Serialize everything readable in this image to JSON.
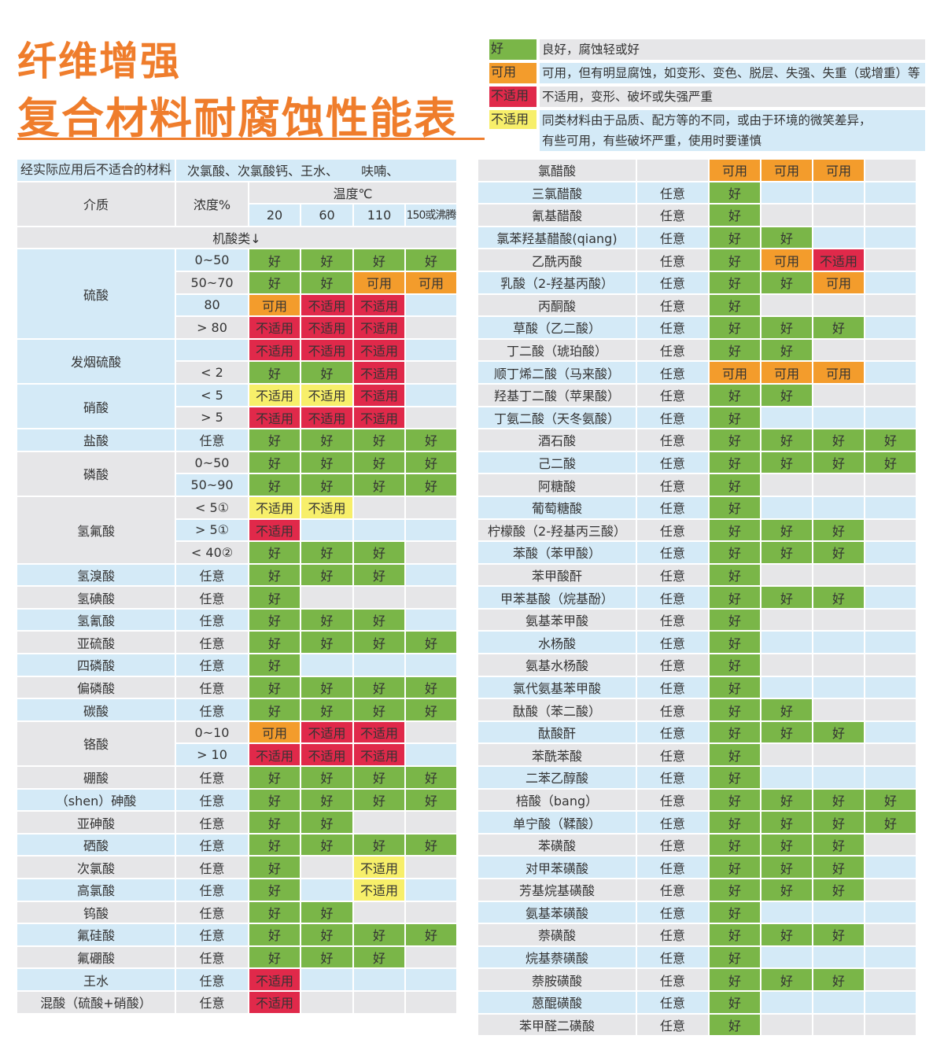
{
  "title": {
    "line1": "纤维增强",
    "line2": "复合材料耐腐蚀性能表"
  },
  "colors": {
    "title": "#ef7d2c",
    "G": "#7ab648",
    "U": "#f39c2c",
    "N": "#e0294a",
    "Y": "#f7ef6a",
    "row_blue": "#d4eaf7",
    "row_gray": "#e6e6e8"
  },
  "legend": {
    "G": {
      "swatch": "好",
      "desc": [
        "良好，腐蚀轻或好"
      ]
    },
    "U": {
      "swatch": "可用",
      "desc": [
        "可用，但有明显腐蚀，如变形、变色、脱层、失强、失重（或增重）等"
      ]
    },
    "N": {
      "swatch": "不适用",
      "desc": [
        "不适用，变形、破坏或失强严重"
      ]
    },
    "Y": {
      "swatch": "不适用",
      "desc": [
        "同类材料由于品质、配方等的不同，或由于环境的微笑差异，",
        "有些可用，有些破坏严重，使用时要谨慎"
      ]
    }
  },
  "left_table": {
    "unsuitable_label": "经实际应用后不适合的材料",
    "unsuitable_value": "次氯酸、次氯酸钙、王水、　　 呋喃、",
    "medium_header": "介质",
    "conc_header": "浓度%",
    "temp_header": "温度℃",
    "temps": [
      "20",
      "60",
      "110",
      "150或沸腾"
    ],
    "section": "机酸类↓",
    "groups": [
      {
        "medium": "硫酸",
        "shade": "blue",
        "rows": [
          {
            "conc": "0~50",
            "cells": [
              "G",
              "G",
              "G",
              "G"
            ]
          },
          {
            "conc": "50~70",
            "cells": [
              "G",
              "G",
              "U",
              "U"
            ]
          },
          {
            "conc": "80",
            "cells": [
              "U",
              "N",
              "N",
              ""
            ]
          },
          {
            "conc": "> 80",
            "cells": [
              "N",
              "N",
              "N",
              ""
            ]
          }
        ]
      },
      {
        "medium": "发烟硫酸",
        "shade": "blue",
        "rows": [
          {
            "conc": "",
            "cells": [
              "N",
              "N",
              "N",
              ""
            ]
          },
          {
            "conc": "< 2",
            "cells": [
              "G",
              "G",
              "N",
              ""
            ]
          }
        ]
      },
      {
        "medium": "硝酸",
        "shade": "blue",
        "rows": [
          {
            "conc": "< 5",
            "cells": [
              "Y",
              "Y",
              "N",
              ""
            ]
          },
          {
            "conc": "> 5",
            "cells": [
              "N",
              "N",
              "N",
              ""
            ]
          }
        ]
      },
      {
        "medium": "盐酸",
        "rows": [
          {
            "conc": "任意",
            "cells": [
              "G",
              "G",
              "G",
              "G"
            ]
          }
        ]
      },
      {
        "medium": "磷酸",
        "shade": "gray",
        "rows": [
          {
            "conc": "0~50",
            "cells": [
              "G",
              "G",
              "G",
              "G"
            ]
          },
          {
            "conc": "50~90",
            "cells": [
              "G",
              "G",
              "G",
              "G"
            ]
          }
        ]
      },
      {
        "medium": "氢氟酸",
        "shade": "gray",
        "rows": [
          {
            "conc": "< 5①",
            "cells": [
              "Y",
              "Y",
              "",
              ""
            ]
          },
          {
            "conc": "> 5①",
            "cells": [
              "N",
              "",
              "",
              ""
            ]
          },
          {
            "conc": "< 40②",
            "cells": [
              "G",
              "G",
              "G",
              ""
            ]
          }
        ]
      },
      {
        "medium": "氢溴酸",
        "rows": [
          {
            "conc": "任意",
            "cells": [
              "G",
              "G",
              "G",
              ""
            ]
          }
        ]
      },
      {
        "medium": "氢碘酸",
        "rows": [
          {
            "conc": "任意",
            "cells": [
              "G",
              "",
              "",
              ""
            ]
          }
        ]
      },
      {
        "medium": "氢氰酸",
        "rows": [
          {
            "conc": "任意",
            "cells": [
              "G",
              "G",
              "G",
              ""
            ]
          }
        ]
      },
      {
        "medium": "亚硫酸",
        "rows": [
          {
            "conc": "任意",
            "cells": [
              "G",
              "G",
              "G",
              "G"
            ]
          }
        ]
      },
      {
        "medium": "四磷酸",
        "rows": [
          {
            "conc": "任意",
            "cells": [
              "G",
              "",
              "",
              ""
            ]
          }
        ]
      },
      {
        "medium": "偏磷酸",
        "rows": [
          {
            "conc": "任意",
            "cells": [
              "G",
              "G",
              "G",
              "G"
            ]
          }
        ]
      },
      {
        "medium": "碳酸",
        "rows": [
          {
            "conc": "任意",
            "cells": [
              "G",
              "G",
              "G",
              "G"
            ]
          }
        ]
      },
      {
        "medium": "铬酸",
        "shade": "gray",
        "rows": [
          {
            "conc": "0~10",
            "cells": [
              "U",
              "N",
              "N",
              ""
            ]
          },
          {
            "conc": "> 10",
            "cells": [
              "N",
              "N",
              "N",
              ""
            ]
          }
        ]
      },
      {
        "medium": "硼酸",
        "rows": [
          {
            "conc": "任意",
            "cells": [
              "G",
              "G",
              "G",
              "G"
            ]
          }
        ]
      },
      {
        "medium": "（shen）砷酸",
        "rows": [
          {
            "conc": "任意",
            "cells": [
              "G",
              "G",
              "G",
              "G"
            ]
          }
        ]
      },
      {
        "medium": "亚砷酸",
        "rows": [
          {
            "conc": "任意",
            "cells": [
              "G",
              "G",
              "",
              ""
            ]
          }
        ]
      },
      {
        "medium": "硒酸",
        "rows": [
          {
            "conc": "任意",
            "cells": [
              "G",
              "G",
              "G",
              "G"
            ]
          }
        ]
      },
      {
        "medium": "次氯酸",
        "rows": [
          {
            "conc": "任意",
            "cells": [
              "G",
              "",
              "Y",
              ""
            ]
          }
        ]
      },
      {
        "medium": "高氯酸",
        "rows": [
          {
            "conc": "任意",
            "cells": [
              "G",
              "",
              "Y",
              ""
            ]
          }
        ]
      },
      {
        "medium": "钨酸",
        "rows": [
          {
            "conc": "任意",
            "cells": [
              "G",
              "G",
              "",
              ""
            ]
          }
        ]
      },
      {
        "medium": "氟硅酸",
        "rows": [
          {
            "conc": "任意",
            "cells": [
              "G",
              "G",
              "G",
              "G"
            ]
          }
        ]
      },
      {
        "medium": "氟硼酸",
        "rows": [
          {
            "conc": "任意",
            "cells": [
              "G",
              "G",
              "G",
              ""
            ]
          }
        ]
      },
      {
        "medium": "王水",
        "rows": [
          {
            "conc": "任意",
            "cells": [
              "N",
              "",
              "",
              ""
            ]
          }
        ]
      },
      {
        "medium": "混酸（硫酸+硝酸）",
        "rows": [
          {
            "conc": "任意",
            "cells": [
              "N",
              "",
              "",
              ""
            ]
          }
        ]
      }
    ]
  },
  "right_table": {
    "rows": [
      {
        "medium": "氯醋酸",
        "conc": "",
        "cells": [
          "U",
          "U",
          "U",
          ""
        ]
      },
      {
        "medium": "三氯醋酸",
        "conc": "任意",
        "cells": [
          "G",
          "",
          "",
          ""
        ]
      },
      {
        "medium": "氰基醋酸",
        "conc": "任意",
        "cells": [
          "G",
          "",
          "",
          ""
        ]
      },
      {
        "medium": "氯苯羟基醋酸(qiang)",
        "conc": "任意",
        "cells": [
          "G",
          "G",
          "",
          ""
        ]
      },
      {
        "medium": "乙酰丙酸",
        "conc": "任意",
        "cells": [
          "G",
          "U",
          "N",
          ""
        ]
      },
      {
        "medium": "乳酸（2-羟基丙酸）",
        "conc": "任意",
        "cells": [
          "G",
          "G",
          "U",
          ""
        ]
      },
      {
        "medium": "丙酮酸",
        "conc": "任意",
        "cells": [
          "G",
          "",
          "",
          ""
        ]
      },
      {
        "medium": "草酸（乙二酸）",
        "conc": "任意",
        "cells": [
          "G",
          "G",
          "G",
          ""
        ]
      },
      {
        "medium": "丁二酸（琥珀酸）",
        "conc": "任意",
        "cells": [
          "G",
          "G",
          "",
          ""
        ]
      },
      {
        "medium": "顺丁烯二酸（马来酸）",
        "conc": "任意",
        "cells": [
          "U",
          "U",
          "U",
          ""
        ]
      },
      {
        "medium": "羟基丁二酸（苹果酸）",
        "conc": "任意",
        "cells": [
          "G",
          "G",
          "",
          ""
        ]
      },
      {
        "medium": "丁氨二酸（天冬氨酸）",
        "conc": "任意",
        "cells": [
          "G",
          "",
          "",
          ""
        ]
      },
      {
        "medium": "酒石酸",
        "conc": "任意",
        "cells": [
          "G",
          "G",
          "G",
          "G"
        ]
      },
      {
        "medium": "己二酸",
        "conc": "任意",
        "cells": [
          "G",
          "G",
          "G",
          "G"
        ]
      },
      {
        "medium": "阿糖酸",
        "conc": "任意",
        "cells": [
          "G",
          "",
          "",
          ""
        ]
      },
      {
        "medium": "葡萄糖酸",
        "conc": "任意",
        "cells": [
          "G",
          "",
          "",
          ""
        ]
      },
      {
        "medium": "柠檬酸（2-羟基丙三酸）",
        "conc": "任意",
        "cells": [
          "G",
          "G",
          "G",
          ""
        ]
      },
      {
        "medium": "苯酸（苯甲酸）",
        "conc": "任意",
        "cells": [
          "G",
          "G",
          "G",
          ""
        ]
      },
      {
        "medium": "苯甲酸酐",
        "conc": "任意",
        "cells": [
          "G",
          "",
          "",
          ""
        ]
      },
      {
        "medium": "甲苯基酸（烷基酚）",
        "conc": "任意",
        "cells": [
          "G",
          "G",
          "G",
          ""
        ]
      },
      {
        "medium": "氨基苯甲酸",
        "conc": "任意",
        "cells": [
          "G",
          "",
          "",
          ""
        ]
      },
      {
        "medium": "水杨酸",
        "conc": "任意",
        "cells": [
          "G",
          "",
          "",
          ""
        ]
      },
      {
        "medium": "氨基水杨酸",
        "conc": "任意",
        "cells": [
          "G",
          "",
          "",
          ""
        ]
      },
      {
        "medium": "氯代氨基苯甲酸",
        "conc": "任意",
        "cells": [
          "G",
          "",
          "",
          ""
        ]
      },
      {
        "medium": "酞酸（苯二酸）",
        "conc": "任意",
        "cells": [
          "G",
          "G",
          "",
          ""
        ]
      },
      {
        "medium": "酞酸酐",
        "conc": "任意",
        "cells": [
          "G",
          "G",
          "G",
          ""
        ]
      },
      {
        "medium": "苯酰苯酸",
        "conc": "任意",
        "cells": [
          "G",
          "",
          "",
          ""
        ]
      },
      {
        "medium": "二苯乙醇酸",
        "conc": "任意",
        "cells": [
          "G",
          "",
          "",
          ""
        ]
      },
      {
        "medium": "棓酸（bang）",
        "conc": "任意",
        "cells": [
          "G",
          "G",
          "G",
          "G"
        ]
      },
      {
        "medium": "单宁酸（鞣酸）",
        "conc": "任意",
        "cells": [
          "G",
          "G",
          "G",
          "G"
        ]
      },
      {
        "medium": "苯磺酸",
        "conc": "任意",
        "cells": [
          "G",
          "G",
          "G",
          ""
        ]
      },
      {
        "medium": "对甲苯磺酸",
        "conc": "任意",
        "cells": [
          "G",
          "G",
          "G",
          ""
        ]
      },
      {
        "medium": "芳基烷基磺酸",
        "conc": "任意",
        "cells": [
          "G",
          "G",
          "G",
          ""
        ]
      },
      {
        "medium": "氨基苯磺酸",
        "conc": "任意",
        "cells": [
          "G",
          "",
          "",
          ""
        ]
      },
      {
        "medium": "萘磺酸",
        "conc": "任意",
        "cells": [
          "G",
          "G",
          "G",
          ""
        ]
      },
      {
        "medium": "烷基萘磺酸",
        "conc": "任意",
        "cells": [
          "G",
          "",
          "",
          ""
        ]
      },
      {
        "medium": "萘胺磺酸",
        "conc": "任意",
        "cells": [
          "G",
          "G",
          "G",
          ""
        ]
      },
      {
        "medium": "蒽醌磺酸",
        "conc": "任意",
        "cells": [
          "G",
          "",
          "",
          ""
        ]
      },
      {
        "medium": "苯甲醛二磺酸",
        "conc": "任意",
        "cells": [
          "G",
          "",
          "",
          ""
        ]
      }
    ]
  }
}
